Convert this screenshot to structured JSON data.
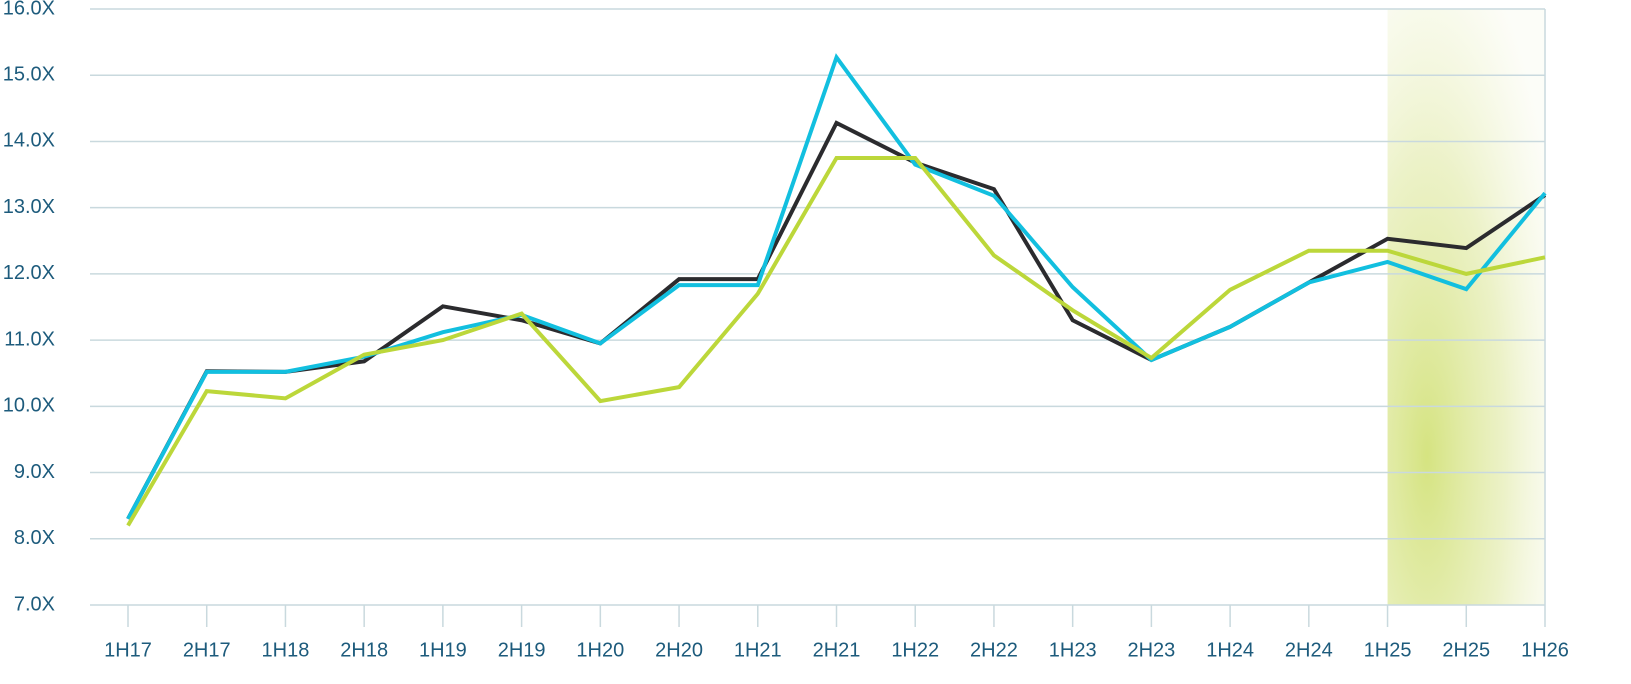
{
  "chart_data": {
    "type": "line",
    "categories": [
      "1H17",
      "2H17",
      "1H18",
      "2H18",
      "1H19",
      "2H19",
      "1H20",
      "2H20",
      "1H21",
      "2H21",
      "1H22",
      "2H22",
      "1H23",
      "2H23",
      "1H24",
      "2H24",
      "1H25",
      "2H25",
      "1H26"
    ],
    "series": [
      {
        "color": "#2b2b2e",
        "values": [
          8.3,
          10.53,
          10.52,
          10.68,
          11.51,
          11.3,
          10.95,
          11.92,
          11.92,
          14.28,
          13.68,
          13.28,
          11.3,
          10.7,
          11.2,
          11.87,
          12.53,
          12.39,
          13.19
        ]
      },
      {
        "color": "#12bfdf",
        "values": [
          8.3,
          10.52,
          10.52,
          10.75,
          11.12,
          11.38,
          10.95,
          11.83,
          11.83,
          15.27,
          13.65,
          13.18,
          11.8,
          10.7,
          11.2,
          11.87,
          12.18,
          11.77,
          13.22
        ]
      },
      {
        "color": "#bcd73a",
        "values": [
          8.2,
          10.23,
          10.12,
          10.78,
          11.0,
          11.4,
          10.08,
          10.29,
          11.7,
          13.75,
          13.75,
          12.28,
          11.45,
          10.73,
          11.76,
          12.35,
          12.35,
          12.0,
          12.25
        ]
      }
    ],
    "ylim": [
      7,
      16
    ],
    "yticks": [
      {
        "value": 7,
        "label": "7.0X"
      },
      {
        "value": 8,
        "label": "8.0X"
      },
      {
        "value": 9,
        "label": "9.0X"
      },
      {
        "value": 10,
        "label": "10.0X"
      },
      {
        "value": 11,
        "label": "11.0X"
      },
      {
        "value": 12,
        "label": "12.0X"
      },
      {
        "value": 13,
        "label": "13.0X"
      },
      {
        "value": 14,
        "label": "14.0X"
      },
      {
        "value": 15,
        "label": "15.0X"
      },
      {
        "value": 16,
        "label": "16.0X"
      }
    ],
    "grid": true
  }
}
